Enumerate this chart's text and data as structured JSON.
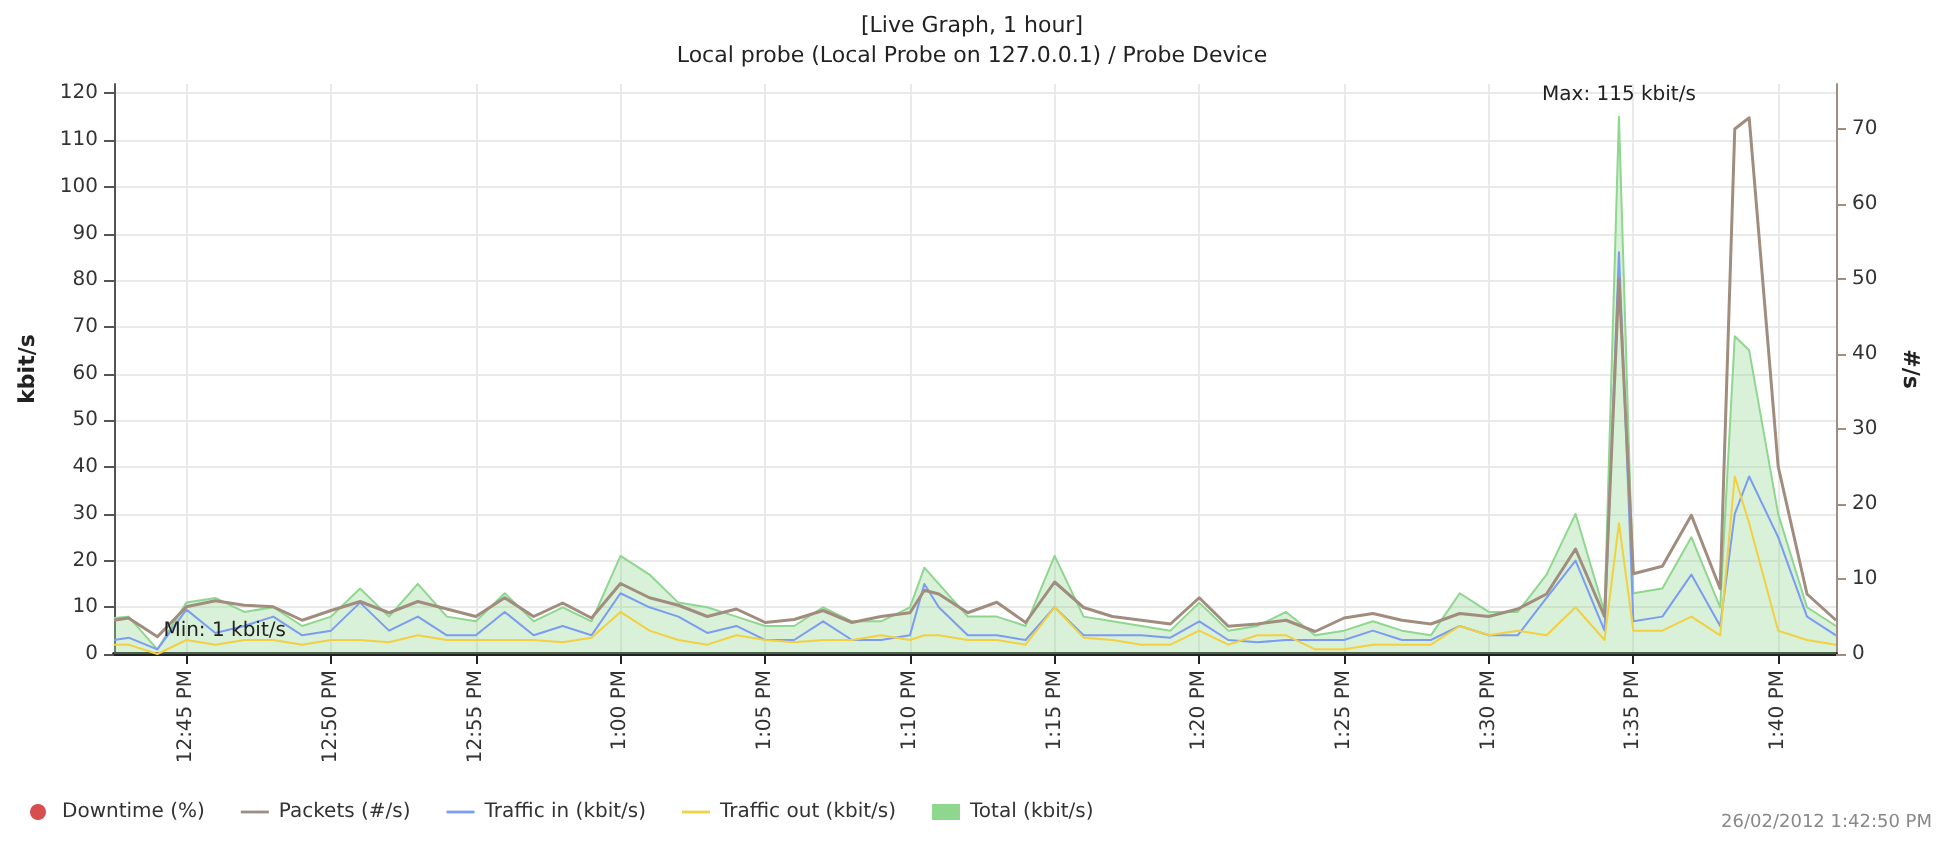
{
  "chart_data": {
    "type": "line",
    "title": "[Live Graph, 1 hour]",
    "subtitle": "Local probe (Local Probe on 127.0.0.1) / Probe Device",
    "ylabel": "kbit/s",
    "y2label": "#/s",
    "x": [
      12.7083,
      12.7167,
      12.7333,
      12.75,
      12.7667,
      12.7833,
      12.8,
      12.8167,
      12.8333,
      12.85,
      12.8667,
      12.8833,
      12.9,
      12.9167,
      12.9333,
      12.95,
      12.9667,
      12.9833,
      13,
      13.0167,
      13.0333,
      13.05,
      13.0667,
      13.0833,
      13.1,
      13.1167,
      13.1333,
      13.15,
      13.1667,
      13.175,
      13.1833,
      13.2,
      13.2167,
      13.2333,
      13.25,
      13.2667,
      13.2833,
      13.3,
      13.3167,
      13.3333,
      13.35,
      13.3667,
      13.3833,
      13.4,
      13.4167,
      13.4333,
      13.45,
      13.4667,
      13.4833,
      13.5,
      13.5167,
      13.5333,
      13.55,
      13.5667,
      13.575,
      13.5833,
      13.6,
      13.6167,
      13.6333,
      13.6417,
      13.65,
      13.6667,
      13.6833,
      13.7
    ],
    "series": [
      {
        "name": "Downtime (%)",
        "type": "scatter",
        "color": "#cc2222",
        "values": [
          null,
          null,
          null,
          null,
          null,
          null,
          null,
          null,
          null,
          null,
          null,
          null,
          null,
          null,
          null,
          null,
          null,
          null,
          null,
          null,
          null,
          null,
          null,
          null,
          null,
          null,
          null,
          null,
          null,
          null,
          null,
          null,
          null,
          null,
          null,
          null,
          null,
          null,
          null,
          null,
          null,
          null,
          null,
          null,
          null,
          null,
          null,
          null,
          null,
          null,
          null,
          null,
          null,
          null,
          null,
          null,
          null,
          null,
          null,
          null,
          null,
          null,
          null,
          null
        ]
      },
      {
        "name": "Packets (#/s)",
        "axis": "y2",
        "color": "#a08d7e",
        "values": [
          4.5,
          4.8,
          2.3,
          6.3,
          7.1,
          6.5,
          6.3,
          4.5,
          5.8,
          7,
          5.5,
          7,
          6,
          5,
          7.5,
          5,
          6.8,
          4.8,
          9.4,
          7.5,
          6.5,
          5,
          6,
          4.2,
          4.6,
          5.8,
          4.2,
          5,
          5.5,
          8.5,
          8,
          5.5,
          6.9,
          4.2,
          9.6,
          6.2,
          5,
          4.5,
          4,
          7.5,
          3.7,
          4,
          4.5,
          3,
          4.8,
          5.4,
          4.5,
          4,
          5.4,
          5,
          6,
          8,
          14,
          5,
          50,
          10.7,
          11.7,
          18.5,
          8.7,
          70,
          71.5,
          25,
          8,
          4.5
        ]
      },
      {
        "name": "Traffic in (kbit/s)",
        "color": "#7b9cf0",
        "values": [
          3,
          3.5,
          1,
          9.5,
          4.5,
          6,
          8,
          4,
          5,
          11,
          5,
          8,
          4,
          4,
          9,
          4,
          6,
          4,
          13,
          10,
          8,
          4.5,
          6,
          3,
          3,
          7,
          3,
          3,
          4,
          15,
          10,
          4,
          4,
          3,
          10,
          4,
          4,
          4,
          3.5,
          7,
          3,
          2.5,
          3,
          3,
          3,
          5,
          3,
          3,
          6,
          4,
          4,
          12,
          20,
          5,
          86,
          7,
          8,
          17,
          6,
          30,
          38,
          25,
          8,
          4
        ]
      },
      {
        "name": "Traffic out (kbit/s)",
        "color": "#f2d041",
        "values": [
          2,
          2,
          0,
          3,
          2,
          3,
          3,
          2,
          3,
          3,
          2.5,
          4,
          3,
          3,
          3,
          3,
          2.5,
          3.5,
          9,
          5,
          3,
          2,
          4,
          3,
          2.5,
          3,
          3,
          4,
          3,
          4,
          4,
          3,
          3,
          2,
          10,
          3.5,
          3,
          2,
          2,
          5,
          2,
          4,
          4,
          1,
          1,
          2,
          2,
          2,
          6,
          4,
          5,
          4,
          10,
          3,
          28,
          5,
          5,
          8,
          4,
          38,
          28,
          5,
          3,
          2
        ]
      },
      {
        "name": "Total (kbit/s)",
        "type": "area",
        "color": "#8fd68f",
        "values": [
          7.7,
          8,
          1,
          11,
          12,
          9,
          10,
          6,
          8,
          14,
          8,
          15,
          8,
          7,
          13,
          7,
          10,
          7,
          21,
          17,
          11,
          10,
          8,
          6,
          6,
          10,
          7,
          7,
          10,
          18.5,
          15,
          8,
          8,
          6,
          21,
          8,
          7,
          6,
          5,
          11,
          5,
          6,
          9,
          4,
          5,
          7,
          5,
          4,
          13,
          9,
          9,
          17,
          30,
          9,
          115,
          13,
          14,
          25,
          10,
          68,
          65,
          30,
          10,
          6
        ]
      }
    ],
    "xlim": [
      12.7083,
      13.7
    ],
    "xticks": [
      {
        "value": 12.75,
        "label": "12:45 PM"
      },
      {
        "value": 12.8333,
        "label": "12:50 PM"
      },
      {
        "value": 12.9167,
        "label": "12:55 PM"
      },
      {
        "value": 13,
        "label": "1:00 PM"
      },
      {
        "value": 13.0833,
        "label": "1:05 PM"
      },
      {
        "value": 13.1667,
        "label": "1:10 PM"
      },
      {
        "value": 13.25,
        "label": "1:15 PM"
      },
      {
        "value": 13.3333,
        "label": "1:20 PM"
      },
      {
        "value": 13.4167,
        "label": "1:25 PM"
      },
      {
        "value": 13.5,
        "label": "1:30 PM"
      },
      {
        "value": 13.5833,
        "label": "1:35 PM"
      },
      {
        "value": 13.6667,
        "label": "1:40 PM"
      }
    ],
    "ylim": [
      0,
      122
    ],
    "yticks": [
      0,
      10,
      20,
      30,
      40,
      50,
      60,
      70,
      80,
      90,
      100,
      110,
      120
    ],
    "y2lim": [
      0,
      76
    ],
    "y2ticks": [
      0,
      10,
      20,
      30,
      40,
      50,
      60,
      70
    ],
    "grid": true,
    "legend": "bottom left",
    "annotations": [
      {
        "text": "Max: 115 kbit/s",
        "x": 13.575,
        "y": 115
      },
      {
        "text": "Min: 1 kbit/s",
        "x": 12.7333,
        "y": 1
      },
      "26/02/2012 1:42:50 PM"
    ]
  }
}
